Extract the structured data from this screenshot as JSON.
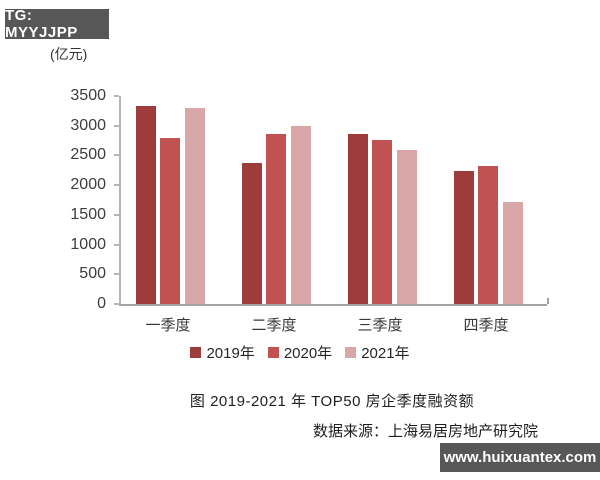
{
  "badge": {
    "text": "TG: MYYJJPP",
    "bg": "#575757",
    "fg": "#ffffff"
  },
  "caption": "图 2019-2021 年 TOP50 房企季度融资额",
  "source": "数据来源：上海易居房地产研究院",
  "watermark": {
    "text": "www.huixuantex.com",
    "bg": "#575757",
    "fg": "#ffffff"
  },
  "chart_data": {
    "type": "bar",
    "title": "图 2019-2021 年 TOP50 房企季度融资额",
    "unit_label": "(亿元)",
    "xlabel": "",
    "ylabel": "亿元",
    "categories": [
      "一季度",
      "二季度",
      "三季度",
      "四季度"
    ],
    "series": [
      {
        "name": "2019年",
        "color": "#9e3c3b",
        "values": [
          3330,
          2380,
          2860,
          2240
        ]
      },
      {
        "name": "2020年",
        "color": "#c05251",
        "values": [
          2790,
          2860,
          2760,
          2330
        ]
      },
      {
        "name": "2021年",
        "color": "#d9a7a7",
        "values": [
          3290,
          2990,
          2600,
          1710
        ]
      }
    ],
    "ylim": [
      0,
      3500
    ],
    "yticks": [
      0,
      500,
      1000,
      1500,
      2000,
      2500,
      3000,
      3500
    ],
    "grid": false,
    "legend_position": "bottom",
    "axis_color": "#b5b5b5",
    "tick_label_color": "#3d3d3d"
  }
}
